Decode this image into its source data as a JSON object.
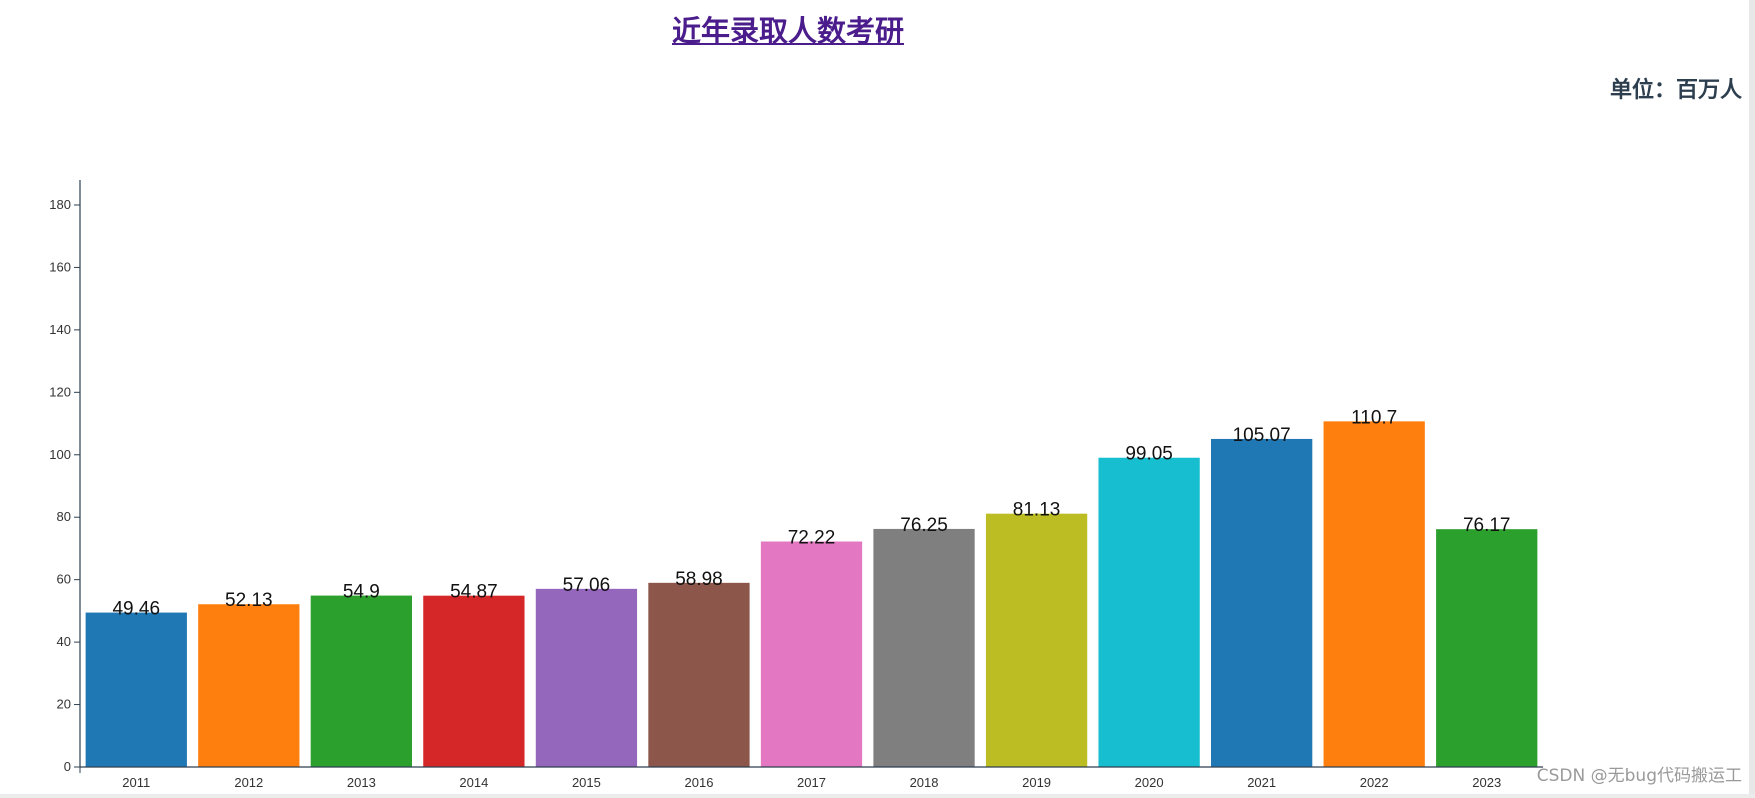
{
  "header": {
    "title": "近年录取人数考研",
    "unit": "单位：百万人"
  },
  "footer": {
    "watermark": "CSDN @无bug代码搬运工"
  },
  "chart_data": {
    "type": "bar",
    "categories": [
      "2011",
      "2012",
      "2013",
      "2014",
      "2015",
      "2016",
      "2017",
      "2018",
      "2019",
      "2020",
      "2021",
      "2022",
      "2023"
    ],
    "values": [
      49.46,
      52.13,
      54.9,
      54.87,
      57.06,
      58.98,
      72.22,
      76.25,
      81.13,
      99.05,
      105.07,
      110.7,
      76.17
    ],
    "value_labels": [
      "49.46",
      "52.13",
      "54.9",
      "54.87",
      "57.06",
      "58.98",
      "72.22",
      "76.25",
      "81.13",
      "99.05",
      "105.07",
      "110.7",
      "76.17"
    ],
    "colors": [
      "#1f77b4",
      "#ff7f0e",
      "#2ca02c",
      "#d62728",
      "#9467bd",
      "#8c564b",
      "#e377c2",
      "#7f7f7f",
      "#bcbd22",
      "#17becf",
      "#1f77b4",
      "#ff7f0e",
      "#2ca02c"
    ],
    "ylim": [
      0,
      188
    ],
    "yticks": [
      0,
      20,
      40,
      60,
      80,
      100,
      120,
      140,
      160,
      180
    ],
    "ytick_labels": [
      "0",
      "20",
      "40",
      "60",
      "80",
      "100",
      "120",
      "140",
      "160",
      "180"
    ],
    "grid": false,
    "xlabel": "",
    "ylabel": ""
  }
}
